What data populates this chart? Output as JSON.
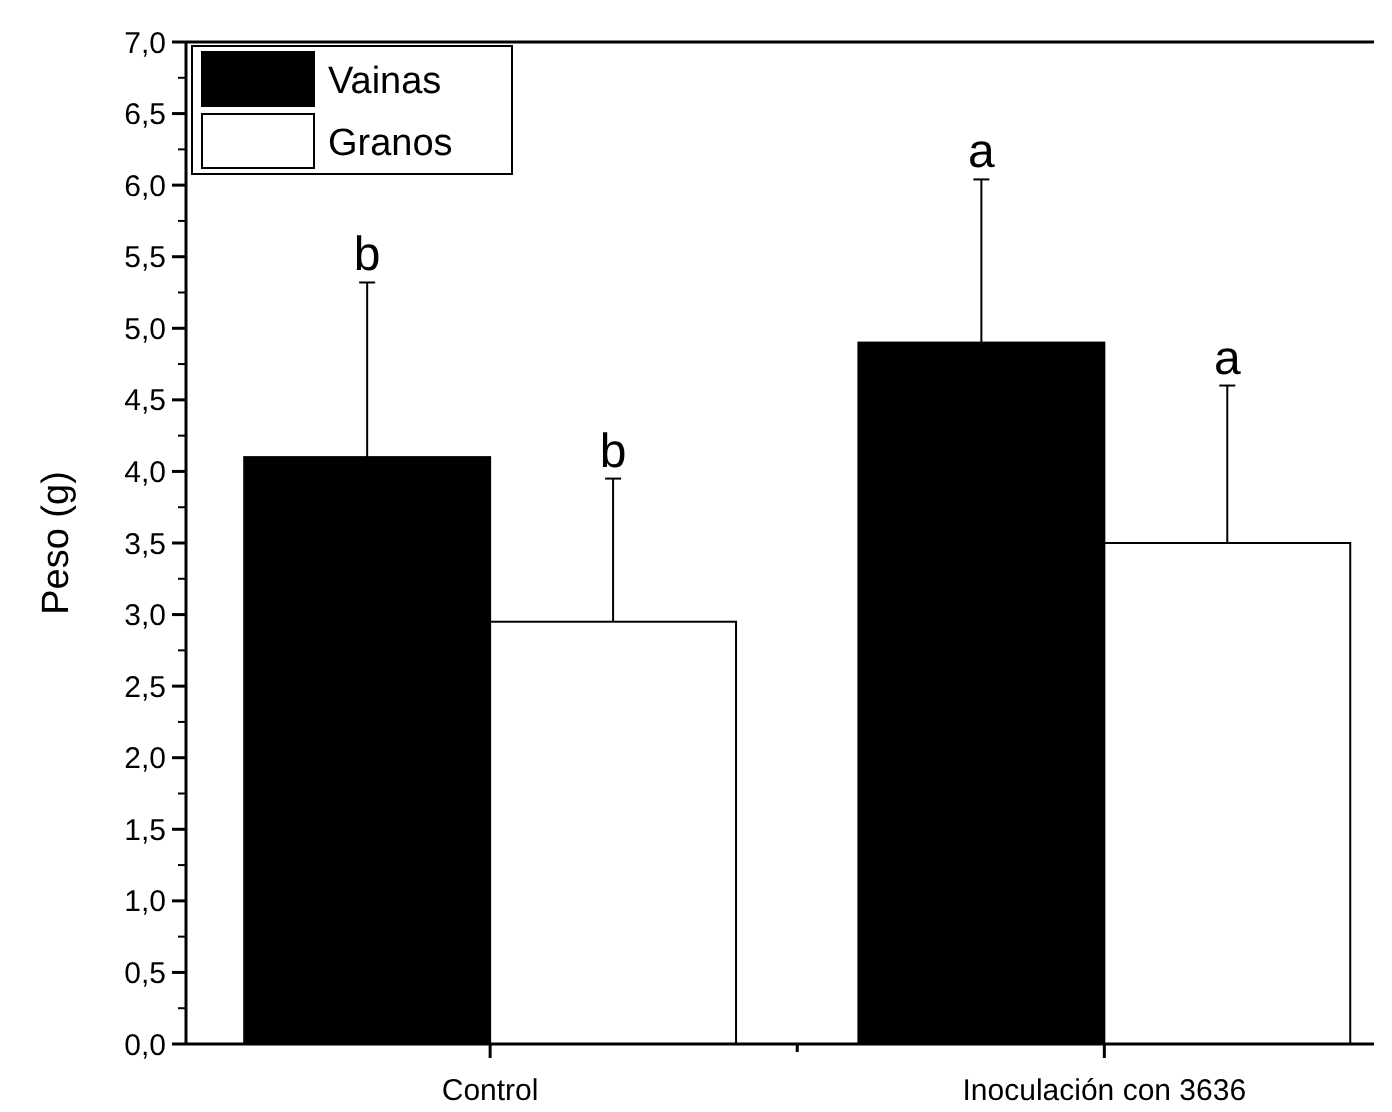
{
  "chart_data": {
    "type": "bar",
    "ylabel": "Peso (g)",
    "categories": [
      "Control",
      "Inoculación con 3636"
    ],
    "series": [
      {
        "name": "Vainas",
        "color": "#000000",
        "values": [
          4.1,
          4.9
        ],
        "errors": [
          1.22,
          1.14
        ]
      },
      {
        "name": "Granos",
        "color": "#ffffff",
        "values": [
          2.95,
          3.5
        ],
        "errors": [
          1.0,
          1.1
        ]
      }
    ],
    "ylim": [
      0,
      7
    ],
    "yticks": [
      {
        "value": 0,
        "label": "0,0"
      },
      {
        "value": 0.5,
        "label": "0,5"
      },
      {
        "value": 1,
        "label": "1,0"
      },
      {
        "value": 1.5,
        "label": "1,5"
      },
      {
        "value": 2,
        "label": "2,0"
      },
      {
        "value": 2.5,
        "label": "2,5"
      },
      {
        "value": 3,
        "label": "3,0"
      },
      {
        "value": 3.5,
        "label": "3,5"
      },
      {
        "value": 4,
        "label": "4,0"
      },
      {
        "value": 4.5,
        "label": "4,5"
      },
      {
        "value": 5,
        "label": "5,0"
      },
      {
        "value": 5.5,
        "label": "5,5"
      },
      {
        "value": 6,
        "label": "6,0"
      },
      {
        "value": 6.5,
        "label": "6,5"
      },
      {
        "value": 7,
        "label": "7,0"
      }
    ],
    "annotations": [
      "b",
      "b",
      "a",
      "a"
    ],
    "legend": "top left",
    "grid": false
  }
}
